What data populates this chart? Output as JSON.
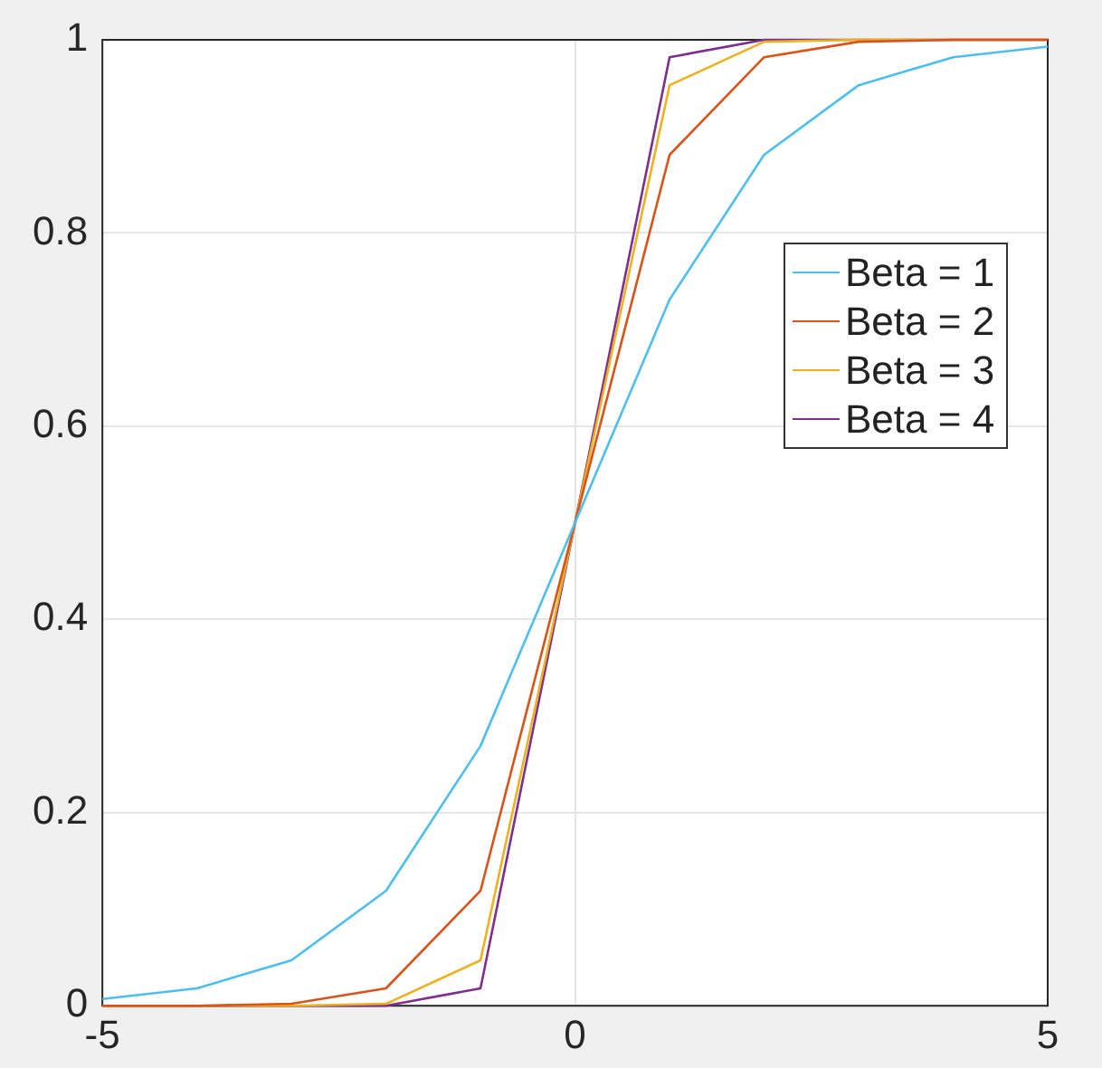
{
  "chart_data": {
    "type": "line",
    "x": [
      -5,
      -4,
      -3,
      -2,
      -1,
      0,
      1,
      2,
      3,
      4,
      5
    ],
    "series": [
      {
        "name": "Beta = 1",
        "color": "#4dbeee",
        "values": [
          0.007,
          0.018,
          0.047,
          0.119,
          0.269,
          0.5,
          0.731,
          0.881,
          0.953,
          0.982,
          0.993
        ]
      },
      {
        "name": "Beta = 2",
        "color": "#d95319",
        "values": [
          0.0,
          0.0,
          0.002,
          0.018,
          0.119,
          0.5,
          0.881,
          0.982,
          0.998,
          1.0,
          1.0
        ]
      },
      {
        "name": "Beta = 3",
        "color": "#edb120",
        "values": [
          0.0,
          0.0,
          0.0,
          0.002,
          0.047,
          0.5,
          0.953,
          0.998,
          1.0,
          1.0,
          1.0
        ]
      },
      {
        "name": "Beta = 4",
        "color": "#7e2f8e",
        "values": [
          0.0,
          0.0,
          0.0,
          0.0,
          0.018,
          0.5,
          0.982,
          1.0,
          1.0,
          1.0,
          1.0
        ]
      }
    ],
    "xlim": [
      -5,
      5
    ],
    "xticks": [
      -5,
      0,
      5
    ],
    "ylim": [
      0,
      1
    ],
    "yticks": [
      0,
      0.2,
      0.4,
      0.6,
      0.8,
      1
    ],
    "grid": true,
    "legend": "top right",
    "marker": "none",
    "line_style": "solid"
  }
}
